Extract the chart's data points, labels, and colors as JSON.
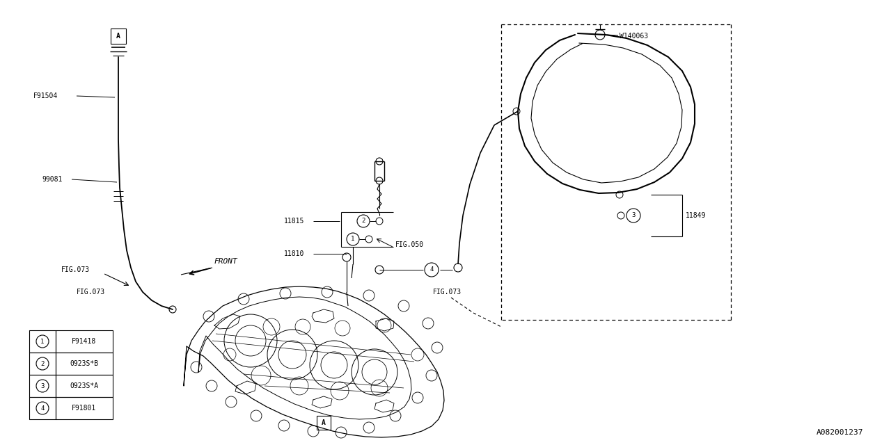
{
  "bg_color": "#ffffff",
  "line_color": "#000000",
  "fig_width": 12.8,
  "fig_height": 6.4,
  "part_number": "A082001237",
  "legend_items": [
    {
      "num": "1",
      "code": "F91418"
    },
    {
      "num": "2",
      "code": "0923S*B"
    },
    {
      "num": "3",
      "code": "0923S*A"
    },
    {
      "num": "4",
      "code": "F91801"
    }
  ]
}
